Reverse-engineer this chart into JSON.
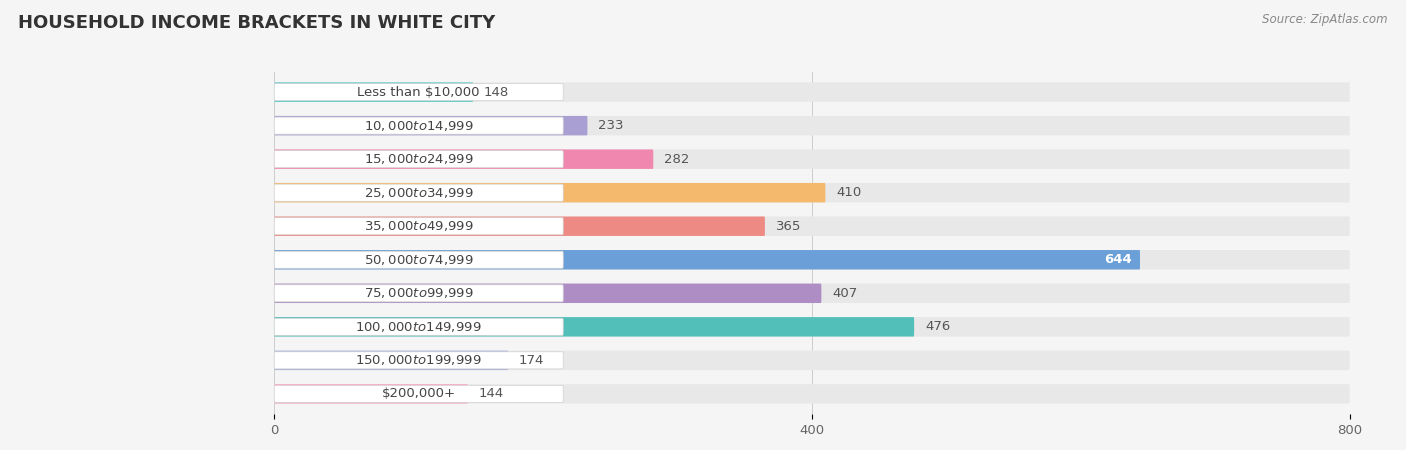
{
  "title": "HOUSEHOLD INCOME BRACKETS IN WHITE CITY",
  "source": "Source: ZipAtlas.com",
  "categories": [
    "Less than $10,000",
    "$10,000 to $14,999",
    "$15,000 to $24,999",
    "$25,000 to $34,999",
    "$35,000 to $49,999",
    "$50,000 to $74,999",
    "$75,000 to $99,999",
    "$100,000 to $149,999",
    "$150,000 to $199,999",
    "$200,000+"
  ],
  "values": [
    148,
    233,
    282,
    410,
    365,
    644,
    407,
    476,
    174,
    144
  ],
  "bar_colors": [
    "#52C8C4",
    "#A99FD2",
    "#F087AE",
    "#F5B96E",
    "#EE8A84",
    "#6A9FD8",
    "#AE8DC4",
    "#52BFB8",
    "#A8B0DC",
    "#F4A8C4"
  ],
  "bg_color": "#f5f5f5",
  "bar_bg_color": "#e8e8e8",
  "xlim": [
    0,
    800
  ],
  "xticks": [
    0,
    400,
    800
  ],
  "title_fontsize": 13,
  "label_fontsize": 9.5,
  "value_fontsize": 9.5,
  "bar_height": 0.58,
  "value_644_color": "white"
}
